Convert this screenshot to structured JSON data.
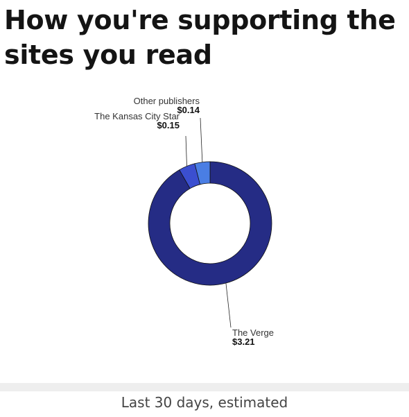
{
  "headline": "How you're supporting the sites you read",
  "footer_text": "Last 30 days, estimated",
  "chart_data": {
    "type": "pie",
    "donut": true,
    "slices": [
      {
        "label": "The Verge",
        "value_label": "$3.21",
        "value": 3.21,
        "color": "#252c85"
      },
      {
        "label": "The Kansas City Star",
        "value_label": "$0.15",
        "value": 0.15,
        "color": "#3b4fd0"
      },
      {
        "label": "Other publishers",
        "value_label": "$0.14",
        "value": 0.14,
        "color": "#4a7ee4"
      }
    ],
    "legend": "none",
    "slice_border_color": "#111111"
  }
}
